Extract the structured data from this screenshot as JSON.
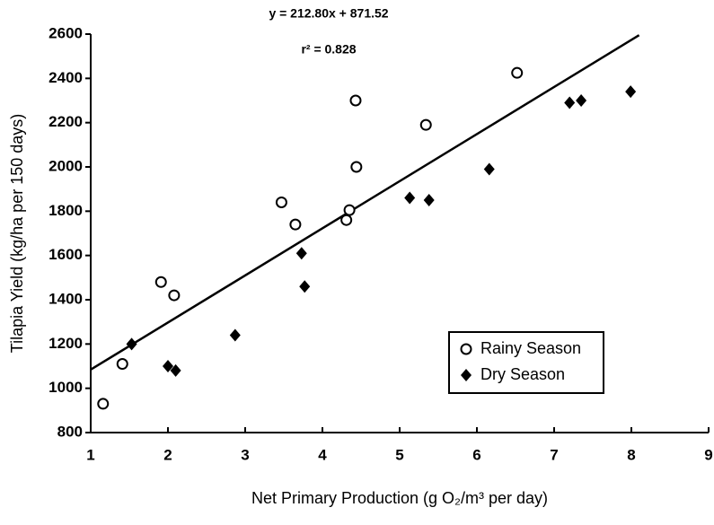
{
  "chart_data": {
    "type": "scatter",
    "annotations": [
      "y = 212.80x + 871.52",
      "r² = 0.828"
    ],
    "xlabel": "Net Primary Production (g O₂/m³ per day)",
    "ylabel": "Tilapia Yield (kg/ha per 150 days)",
    "xlim": [
      1,
      9
    ],
    "xticks": [
      1,
      2,
      3,
      4,
      5,
      6,
      7,
      8,
      9
    ],
    "ylim": [
      800,
      2600
    ],
    "yticks": [
      800,
      1000,
      1200,
      1400,
      1600,
      1800,
      2000,
      2200,
      2400,
      2600
    ],
    "legend": "lower right",
    "series": [
      {
        "name": "Rainy Season",
        "color": "#000000",
        "marker": "open",
        "x": [
          1.16,
          1.41,
          1.91,
          2.08,
          3.47,
          3.65,
          4.31,
          4.35,
          4.43,
          4.44,
          5.34,
          6.52
        ],
        "values": [
          930,
          1110,
          1480,
          1420,
          1840,
          1740,
          1760,
          1805,
          2300,
          2000,
          2190,
          2425
        ]
      },
      {
        "name": "Dry Season",
        "color": "#000000",
        "marker": "filled",
        "x": [
          1.53,
          2.0,
          2.1,
          2.87,
          3.73,
          3.77,
          5.13,
          5.38,
          6.16,
          7.2,
          7.35,
          7.99
        ],
        "values": [
          1200,
          1100,
          1080,
          1240,
          1610,
          1460,
          1860,
          1850,
          1990,
          2290,
          2300,
          2340
        ]
      }
    ],
    "trendline": {
      "slope": 212.8,
      "intercept": 871.52,
      "xlim": [
        1,
        8.1
      ]
    }
  }
}
